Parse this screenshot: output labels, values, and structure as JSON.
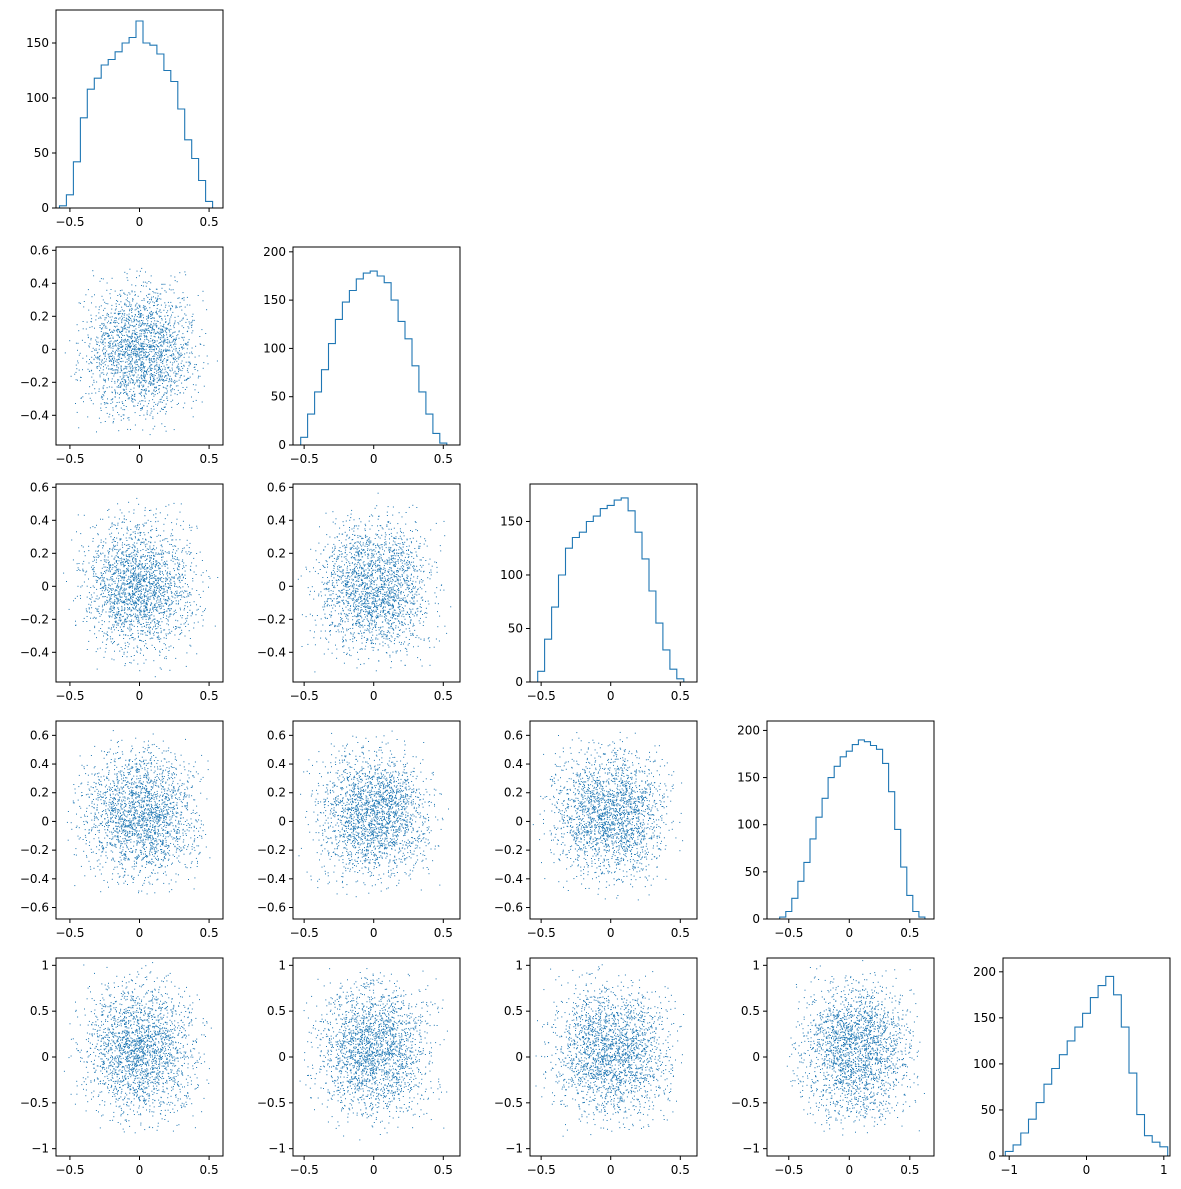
{
  "colors": {
    "series": "#1f77b4",
    "axes": "#000000",
    "background": "#ffffff"
  },
  "chart_data": {
    "type": "corner",
    "dimensions": 5,
    "series_color": "#1f77b4",
    "variables": [
      {
        "index": 0,
        "range": [
          -0.6,
          0.6
        ],
        "ticks": [
          -0.5,
          0.0,
          0.5
        ],
        "hist": {
          "ylim": [
            0,
            180
          ],
          "yticks": [
            0,
            50,
            100,
            150
          ],
          "x": [
            -0.55,
            -0.5,
            -0.45,
            -0.4,
            -0.35,
            -0.3,
            -0.25,
            -0.2,
            -0.15,
            -0.1,
            -0.05,
            0.0,
            0.05,
            0.1,
            0.15,
            0.2,
            0.25,
            0.3,
            0.35,
            0.4,
            0.45,
            0.5,
            0.55
          ],
          "counts": [
            2,
            12,
            42,
            82,
            108,
            118,
            130,
            135,
            142,
            150,
            155,
            170,
            150,
            148,
            140,
            125,
            115,
            90,
            62,
            45,
            25,
            6,
            0
          ]
        }
      },
      {
        "index": 1,
        "range": [
          -0.58,
          0.62
        ],
        "ticks": [
          -0.5,
          0.0,
          0.5
        ],
        "scatter_ticks": [
          -0.4,
          -0.2,
          0.0,
          0.2,
          0.4,
          0.6
        ],
        "hist": {
          "ylim": [
            0,
            205
          ],
          "yticks": [
            0,
            50,
            100,
            150,
            200
          ],
          "x": [
            -0.55,
            -0.5,
            -0.45,
            -0.4,
            -0.35,
            -0.3,
            -0.25,
            -0.2,
            -0.15,
            -0.1,
            -0.05,
            0.0,
            0.05,
            0.1,
            0.15,
            0.2,
            0.25,
            0.3,
            0.35,
            0.4,
            0.45,
            0.5,
            0.55
          ],
          "counts": [
            0,
            8,
            32,
            55,
            78,
            105,
            130,
            148,
            160,
            172,
            178,
            180,
            175,
            168,
            150,
            128,
            110,
            82,
            55,
            32,
            12,
            2,
            0
          ]
        }
      },
      {
        "index": 2,
        "range": [
          -0.58,
          0.62
        ],
        "ticks": [
          -0.5,
          0.0,
          0.5
        ],
        "scatter_ticks": [
          -0.4,
          -0.2,
          0.0,
          0.2,
          0.4,
          0.6
        ],
        "hist": {
          "ylim": [
            0,
            185
          ],
          "yticks": [
            0,
            50,
            100,
            150
          ],
          "x": [
            -0.55,
            -0.5,
            -0.45,
            -0.4,
            -0.35,
            -0.3,
            -0.25,
            -0.2,
            -0.15,
            -0.1,
            -0.05,
            0.0,
            0.05,
            0.1,
            0.15,
            0.2,
            0.25,
            0.3,
            0.35,
            0.4,
            0.45,
            0.5,
            0.55
          ],
          "counts": [
            0,
            10,
            40,
            70,
            100,
            125,
            135,
            140,
            150,
            155,
            162,
            165,
            170,
            172,
            160,
            140,
            115,
            85,
            55,
            30,
            12,
            3,
            0
          ]
        }
      },
      {
        "index": 3,
        "range": [
          -0.68,
          0.7
        ],
        "ticks": [
          -0.5,
          0.0,
          0.5
        ],
        "scatter_ticks": [
          -0.6,
          -0.4,
          -0.2,
          0.0,
          0.2,
          0.4,
          0.6
        ],
        "hist": {
          "ylim": [
            0,
            210
          ],
          "yticks": [
            0,
            50,
            100,
            150,
            200
          ],
          "x": [
            -0.6,
            -0.55,
            -0.5,
            -0.45,
            -0.4,
            -0.35,
            -0.3,
            -0.25,
            -0.2,
            -0.15,
            -0.1,
            -0.05,
            0.0,
            0.05,
            0.1,
            0.15,
            0.2,
            0.25,
            0.3,
            0.35,
            0.4,
            0.45,
            0.5,
            0.55,
            0.6,
            0.65
          ],
          "counts": [
            0,
            2,
            8,
            22,
            40,
            60,
            85,
            108,
            128,
            150,
            162,
            172,
            178,
            185,
            190,
            188,
            184,
            180,
            165,
            135,
            95,
            55,
            25,
            8,
            2,
            0
          ]
        }
      },
      {
        "index": 4,
        "range": [
          -1.08,
          1.08
        ],
        "ticks": [
          -1,
          0,
          1
        ],
        "scatter_ticks": [
          -1.0,
          -0.5,
          0.0,
          0.5,
          1.0
        ],
        "hist": {
          "ylim": [
            0,
            215
          ],
          "yticks": [
            0,
            50,
            100,
            150,
            200
          ],
          "x": [
            -1.0,
            -0.9,
            -0.8,
            -0.7,
            -0.6,
            -0.5,
            -0.4,
            -0.3,
            -0.2,
            -0.1,
            0.0,
            0.1,
            0.2,
            0.3,
            0.4,
            0.5,
            0.6,
            0.7,
            0.8,
            0.9,
            1.0
          ],
          "counts": [
            5,
            12,
            25,
            40,
            58,
            78,
            95,
            110,
            125,
            140,
            155,
            172,
            185,
            195,
            175,
            140,
            90,
            45,
            22,
            15,
            10
          ]
        }
      }
    ]
  }
}
